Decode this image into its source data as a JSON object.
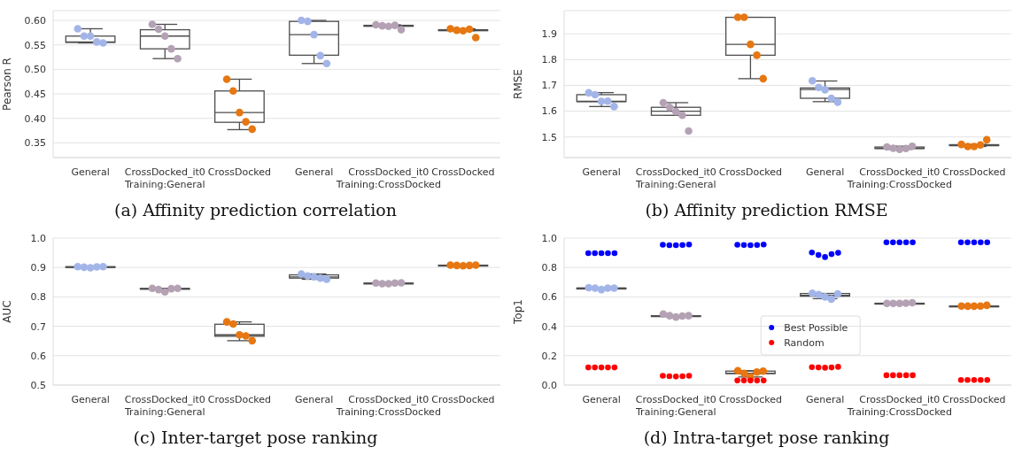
{
  "chart_data": [
    {
      "type": "box",
      "title": "(a) Affinity prediction correlation",
      "ylabel": "Pearson R",
      "categories": [
        "General",
        "CrossDocked_it0\nTraining:General",
        "CrossDocked",
        "General",
        "CrossDocked_it0\nTraining:CrossDocked",
        "CrossDocked"
      ],
      "ylim": [
        0.32,
        0.62
      ],
      "yticks": [
        0.35,
        {
          "value": 0.4,
          "label": "0.40"
        },
        0.45,
        {
          "value": 0.5,
          "label": "0.50"
        },
        0.55,
        {
          "value": 0.6,
          "label": "0.60"
        }
      ],
      "grid": "y",
      "marker": "circle",
      "series": [
        {
          "type": "box",
          "color": "#4d4d4d",
          "boxes": [
            {
              "low": 0.554,
              "q1": 0.555,
              "median": 0.556,
              "q3": 0.568,
              "high": 0.583
            },
            {
              "low": 0.522,
              "q1": 0.542,
              "median": 0.568,
              "q3": 0.581,
              "high": 0.592
            },
            {
              "low": 0.377,
              "q1": 0.392,
              "median": 0.412,
              "q3": 0.456,
              "high": 0.48
            },
            {
              "low": 0.512,
              "q1": 0.529,
              "median": 0.571,
              "q3": 0.598,
              "high": 0.6
            },
            {
              "low": 0.588,
              "q1": 0.588,
              "median": 0.589,
              "q3": 0.59,
              "high": 0.591
            },
            {
              "low": 0.579,
              "q1": 0.579,
              "median": 0.58,
              "q3": 0.581,
              "high": 0.583
            }
          ]
        },
        {
          "type": "scatter",
          "colors": [
            "#a3b5e8",
            "#b4a2b4",
            "#e67712",
            "#a3b5e8",
            "#b4a2b4",
            "#e67712"
          ],
          "values": [
            0.583,
            0.592,
            0.48,
            0.6,
            0.591,
            0.583
          ]
        },
        {
          "type": "scatter",
          "colors": [
            "#a3b5e8",
            "#b4a2b4",
            "#e67712",
            "#a3b5e8",
            "#b4a2b4",
            "#e67712"
          ],
          "values": [
            0.568,
            0.582,
            0.456,
            0.598,
            0.589,
            0.58
          ]
        },
        {
          "type": "scatter",
          "colors": [
            "#a3b5e8",
            "#b4a2b4",
            "#e67712",
            "#a3b5e8",
            "#b4a2b4",
            "#e67712"
          ],
          "values": [
            0.568,
            0.568,
            0.412,
            0.571,
            0.588,
            0.579
          ]
        },
        {
          "type": "scatter",
          "colors": [
            "#a3b5e8",
            "#b4a2b4",
            "#e67712",
            "#a3b5e8",
            "#b4a2b4",
            "#e67712"
          ],
          "values": [
            0.556,
            0.542,
            0.393,
            0.528,
            0.59,
            0.582
          ]
        },
        {
          "type": "scatter",
          "colors": [
            "#a3b5e8",
            "#b4a2b4",
            "#e67712",
            "#a3b5e8",
            "#b4a2b4",
            "#e67712"
          ],
          "values": [
            0.554,
            0.522,
            0.378,
            0.512,
            0.581,
            0.565
          ]
        }
      ]
    },
    {
      "type": "box",
      "title": "(b) Affinity prediction RMSE",
      "ylabel": "RMSE",
      "categories": [
        "General",
        "CrossDocked_it0\nTraining:General",
        "CrossDocked",
        "General",
        "CrossDocked_it0\nTraining:CrossDocked",
        "CrossDocked"
      ],
      "ylim": [
        1.42,
        1.99
      ],
      "yticks": [
        1.5,
        1.6,
        1.7,
        1.8,
        1.9
      ],
      "grid": "y",
      "marker": "circle",
      "series": [
        {
          "type": "box",
          "color": "#4d4d4d",
          "boxes": [
            {
              "low": 1.618,
              "q1": 1.637,
              "median": 1.638,
              "q3": 1.664,
              "high": 1.672
            },
            {
              "low": 1.584,
              "q1": 1.584,
              "median": 1.6,
              "q3": 1.615,
              "high": 1.633
            },
            {
              "low": 1.726,
              "q1": 1.817,
              "median": 1.859,
              "q3": 1.964,
              "high": 1.964
            },
            {
              "low": 1.637,
              "q1": 1.65,
              "median": 1.684,
              "q3": 1.69,
              "high": 1.717
            },
            {
              "low": 1.452,
              "q1": 1.455,
              "median": 1.456,
              "q3": 1.461,
              "high": 1.464
            },
            {
              "low": 1.463,
              "q1": 1.466,
              "median": 1.469,
              "q3": 1.47,
              "high": 1.471
            }
          ]
        },
        {
          "type": "scatter",
          "colors": [
            "#a3b5e8",
            "#b4a2b4",
            "#e67712",
            "#a3b5e8",
            "#b4a2b4",
            "#e67712"
          ],
          "values": [
            1.671,
            1.633,
            1.964,
            1.718,
            1.461,
            1.471
          ]
        },
        {
          "type": "scatter",
          "colors": [
            "#a3b5e8",
            "#b4a2b4",
            "#e67712",
            "#a3b5e8",
            "#b4a2b4",
            "#e67712"
          ],
          "values": [
            1.664,
            1.615,
            1.964,
            1.692,
            1.456,
            1.463
          ]
        },
        {
          "type": "scatter",
          "colors": [
            "#a3b5e8",
            "#b4a2b4",
            "#e67712",
            "#a3b5e8",
            "#b4a2b4",
            "#e67712"
          ],
          "values": [
            1.638,
            1.598,
            1.859,
            1.683,
            1.452,
            1.463
          ]
        },
        {
          "type": "scatter",
          "colors": [
            "#a3b5e8",
            "#b4a2b4",
            "#e67712",
            "#a3b5e8",
            "#b4a2b4",
            "#e67712"
          ],
          "values": [
            1.639,
            1.584,
            1.817,
            1.65,
            1.455,
            1.469
          ]
        },
        {
          "type": "scatter",
          "colors": [
            "#a3b5e8",
            "#b4a2b4",
            "#e67712",
            "#a3b5e8",
            "#b4a2b4",
            "#e67712"
          ],
          "values": [
            1.618,
            1.523,
            1.726,
            1.635,
            1.464,
            1.489
          ]
        }
      ]
    },
    {
      "type": "box",
      "title": "(c) Inter-target pose ranking",
      "ylabel": "AUC",
      "categories": [
        "General",
        "CrossDocked_it0\nTraining:General",
        "CrossDocked",
        "General",
        "CrossDocked_it0\nTraining:CrossDocked",
        "CrossDocked"
      ],
      "ylim": [
        0.5,
        1.0
      ],
      "yticks": [
        0.5,
        0.6,
        0.7,
        0.8,
        0.9,
        {
          "value": 1.0,
          "label": "1.0"
        }
      ],
      "grid": "y",
      "marker": "circle",
      "series": [
        {
          "type": "box",
          "color": "#4d4d4d",
          "boxes": [
            {
              "low": 0.899,
              "q1": 0.901,
              "median": 0.902,
              "q3": 0.903,
              "high": 0.903
            },
            {
              "low": 0.825,
              "q1": 0.826,
              "median": 0.828,
              "q3": 0.829,
              "high": 0.829
            },
            {
              "low": 0.651,
              "q1": 0.666,
              "median": 0.671,
              "q3": 0.707,
              "high": 0.715
            },
            {
              "low": 0.86,
              "q1": 0.864,
              "median": 0.868,
              "q3": 0.875,
              "high": 0.878
            },
            {
              "low": 0.845,
              "q1": 0.845,
              "median": 0.847,
              "q3": 0.847,
              "high": 0.848
            },
            {
              "low": 0.906,
              "q1": 0.907,
              "median": 0.907,
              "q3": 0.908,
              "high": 0.908
            }
          ]
        },
        {
          "type": "scatter",
          "colors": [
            "#a3b5e8",
            "#b4a2b4",
            "#e67712",
            "#a3b5e8",
            "#b4a2b4",
            "#e67712"
          ],
          "values": [
            0.903,
            0.829,
            0.715,
            0.878,
            0.847,
            0.908
          ]
        },
        {
          "type": "scatter",
          "colors": [
            "#a3b5e8",
            "#b4a2b4",
            "#e67712",
            "#a3b5e8",
            "#b4a2b4",
            "#e67712"
          ],
          "values": [
            0.901,
            0.825,
            0.708,
            0.871,
            0.845,
            0.907
          ]
        },
        {
          "type": "scatter",
          "colors": [
            "#a3b5e8",
            "#b4a2b4",
            "#e67712",
            "#a3b5e8",
            "#b4a2b4",
            "#e67712"
          ],
          "values": [
            0.899,
            0.817,
            0.671,
            0.868,
            0.845,
            0.906
          ]
        },
        {
          "type": "scatter",
          "colors": [
            "#a3b5e8",
            "#b4a2b4",
            "#e67712",
            "#a3b5e8",
            "#b4a2b4",
            "#e67712"
          ],
          "values": [
            0.902,
            0.828,
            0.667,
            0.864,
            0.847,
            0.907
          ]
        },
        {
          "type": "scatter",
          "colors": [
            "#a3b5e8",
            "#b4a2b4",
            "#e67712",
            "#a3b5e8",
            "#b4a2b4",
            "#e67712"
          ],
          "values": [
            0.903,
            0.829,
            0.651,
            0.86,
            0.848,
            0.908
          ]
        }
      ]
    },
    {
      "type": "box",
      "title": "(d) Intra-target pose ranking",
      "ylabel": "Top1",
      "categories": [
        "General",
        "CrossDocked_it0\nTraining:General",
        "CrossDocked",
        "General",
        "CrossDocked_it0\nTraining:CrossDocked",
        "CrossDocked"
      ],
      "ylim": [
        0,
        1.0
      ],
      "yticks": [
        {
          "value": 0,
          "label": "0.0"
        },
        0.2,
        0.4,
        0.6,
        0.8,
        {
          "value": 1.0,
          "label": "1.0"
        }
      ],
      "grid": "y",
      "marker": "circle",
      "legend": "center",
      "series": [
        {
          "type": "box",
          "color": "#4d4d4d",
          "boxes": [
            {
              "low": 0.66,
              "q1": 0.66,
              "median": 0.66,
              "q3": 0.66,
              "high": 0.663
            },
            {
              "low": 0.47,
              "q1": 0.472,
              "median": 0.472,
              "q3": 0.472,
              "high": 0.472
            },
            {
              "low": 0.055,
              "q1": 0.078,
              "median": 0.08,
              "q3": 0.095,
              "high": 0.098
            },
            {
              "low": 0.588,
              "q1": 0.605,
              "median": 0.61,
              "q3": 0.623,
              "high": 0.623
            },
            {
              "low": 0.556,
              "q1": 0.556,
              "median": 0.556,
              "q3": 0.557,
              "high": 0.56
            },
            {
              "low": 0.537,
              "q1": 0.537,
              "median": 0.538,
              "q3": 0.538,
              "high": 0.543
            }
          ]
        },
        {
          "type": "scatter",
          "colors": [
            "#a3b5e8",
            "#b4a2b4",
            "#e67712",
            "#a3b5e8",
            "#b4a2b4",
            "#e67712"
          ],
          "values": [
            0.663,
            0.483,
            0.098,
            0.625,
            0.556,
            0.538
          ]
        },
        {
          "type": "scatter",
          "colors": [
            "#a3b5e8",
            "#b4a2b4",
            "#e67712",
            "#a3b5e8",
            "#b4a2b4",
            "#e67712"
          ],
          "values": [
            0.66,
            0.472,
            0.08,
            0.615,
            0.556,
            0.537
          ]
        },
        {
          "type": "scatter",
          "colors": [
            "#a3b5e8",
            "#b4a2b4",
            "#e67712",
            "#a3b5e8",
            "#b4a2b4",
            "#e67712"
          ],
          "values": [
            0.65,
            0.463,
            0.055,
            0.6,
            0.556,
            0.537
          ]
        },
        {
          "type": "scatter",
          "colors": [
            "#a3b5e8",
            "#b4a2b4",
            "#e67712",
            "#a3b5e8",
            "#b4a2b4",
            "#e67712"
          ],
          "values": [
            0.66,
            0.47,
            0.089,
            0.585,
            0.557,
            0.538
          ]
        },
        {
          "type": "scatter",
          "colors": [
            "#a3b5e8",
            "#b4a2b4",
            "#e67712",
            "#a3b5e8",
            "#b4a2b4",
            "#e67712"
          ],
          "values": [
            0.66,
            0.472,
            0.095,
            0.62,
            0.56,
            0.543
          ]
        },
        {
          "type": "scatter",
          "name": "Best Possible",
          "color": "#0000ff",
          "values": [
            0.898,
            0.955,
            0.955,
            0.902,
            0.971,
            0.971
          ]
        },
        {
          "type": "scatter",
          "color": "#0000ff",
          "values": [
            0.898,
            0.952,
            0.953,
            0.885,
            0.971,
            0.971
          ]
        },
        {
          "type": "scatter",
          "color": "#0000ff",
          "values": [
            0.898,
            0.952,
            0.952,
            0.871,
            0.971,
            0.971
          ]
        },
        {
          "type": "scatter",
          "color": "#0000ff",
          "values": [
            0.898,
            0.953,
            0.953,
            0.891,
            0.971,
            0.971
          ]
        },
        {
          "type": "scatter",
          "color": "#0000ff",
          "values": [
            0.898,
            0.956,
            0.956,
            0.9,
            0.971,
            0.971
          ]
        },
        {
          "type": "scatter",
          "name": "Random",
          "color": "#ff0000",
          "values": [
            0.12,
            0.063,
            0.031,
            0.122,
            0.067,
            0.035
          ]
        },
        {
          "type": "scatter",
          "color": "#ff0000",
          "values": [
            0.12,
            0.06,
            0.031,
            0.12,
            0.067,
            0.035
          ]
        },
        {
          "type": "scatter",
          "color": "#ff0000",
          "values": [
            0.12,
            0.058,
            0.031,
            0.118,
            0.067,
            0.035
          ]
        },
        {
          "type": "scatter",
          "color": "#ff0000",
          "values": [
            0.12,
            0.06,
            0.031,
            0.12,
            0.067,
            0.035
          ]
        },
        {
          "type": "scatter",
          "color": "#ff0000",
          "values": [
            0.12,
            0.063,
            0.031,
            0.124,
            0.067,
            0.035
          ]
        }
      ]
    }
  ]
}
